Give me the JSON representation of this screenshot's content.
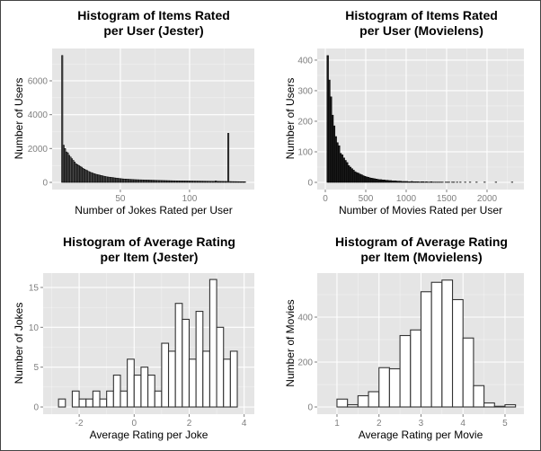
{
  "chart_data": [
    {
      "type": "bar",
      "title": "Histogram of Items Rated\nper User (Jester)",
      "xlabel": "Number of Jokes Rated per User",
      "ylabel": "Number of Users",
      "xlim": [
        0.7,
        146.8
      ],
      "ylim": [
        -425,
        7910
      ],
      "xticks": [
        50,
        100
      ],
      "yticks": [
        0,
        2000,
        4000,
        6000
      ],
      "grid": true,
      "bin_start": 7.5,
      "bin_width": 1,
      "counts": [
        7500,
        2200,
        2000,
        1800,
        1750,
        1600,
        1500,
        1400,
        1300,
        1200,
        1100,
        1050,
        1000,
        950,
        900,
        830,
        780,
        740,
        700,
        650,
        610,
        580,
        550,
        520,
        490,
        470,
        450,
        430,
        410,
        390,
        370,
        350,
        335,
        320,
        310,
        300,
        290,
        280,
        265,
        255,
        245,
        235,
        225,
        215,
        205,
        200,
        195,
        190,
        185,
        180,
        175,
        170,
        165,
        160,
        158,
        155,
        152,
        150,
        148,
        145,
        142,
        140,
        138,
        135,
        132,
        130,
        128,
        125,
        122,
        120,
        118,
        115,
        112,
        110,
        108,
        106,
        104,
        102,
        100,
        98,
        96,
        95,
        94,
        92,
        90,
        89,
        88,
        87,
        86,
        85,
        84,
        83,
        82,
        81,
        80,
        79,
        78,
        77,
        76,
        75,
        74,
        73,
        72,
        71,
        70,
        69,
        68,
        67,
        66,
        65,
        64,
        90,
        62,
        61,
        60,
        59,
        58,
        57,
        56,
        55,
        2900,
        50,
        48,
        46,
        45,
        44,
        43,
        42,
        41,
        40,
        40,
        39,
        38
      ],
      "fill": "#4d4d4d",
      "outline": "#000000"
    },
    {
      "type": "bar",
      "title": "Histogram of Items Rated\nper User (Movielens)",
      "xlabel": "Number of Movies Rated per User",
      "ylabel": "Number of Users",
      "xlim": [
        -100,
        2456
      ],
      "ylim": [
        -23.5,
        438
      ],
      "xticks": [
        0,
        500,
        1000,
        1500,
        2000
      ],
      "yticks": [
        0,
        100,
        200,
        300,
        400
      ],
      "grid": true,
      "bin_start": 20,
      "bin_width": 20,
      "counts": [
        415,
        335,
        280,
        220,
        185,
        150,
        130,
        120,
        95,
        90,
        80,
        72,
        65,
        55,
        50,
        45,
        40,
        35,
        32,
        30,
        27,
        25,
        22,
        20,
        18,
        17,
        15,
        14,
        13,
        12,
        11,
        10,
        9,
        9,
        8,
        8,
        7,
        7,
        6,
        6,
        5,
        5,
        5,
        4,
        4,
        4,
        3,
        3,
        3,
        3,
        2,
        2,
        3,
        2,
        2,
        2,
        2,
        1,
        2,
        2,
        1,
        2,
        1,
        1,
        2,
        1,
        1,
        1,
        1,
        1,
        1,
        1,
        0,
        1,
        1,
        1,
        0,
        1,
        1,
        0,
        1,
        0,
        1,
        0,
        0,
        1,
        0,
        0,
        1,
        0,
        0,
        0,
        1,
        0,
        0,
        0,
        0,
        1,
        0,
        0,
        0,
        0,
        0,
        0,
        1,
        0,
        0,
        0,
        0,
        0,
        0,
        0,
        0,
        0,
        1
      ],
      "fill": "#1a1a1a",
      "outline": "#000000"
    },
    {
      "type": "bar",
      "title": "Histogram of Average Rating\nper Item (Jester)",
      "xlabel": "Average Rating per Joke",
      "ylabel": "Number of Jokes",
      "xlim": [
        -3.31,
        4.37
      ],
      "ylim": [
        -0.9,
        16.8
      ],
      "xticks": [
        -2,
        0,
        2,
        4
      ],
      "yticks": [
        0,
        5,
        10,
        15
      ],
      "grid": true,
      "bin_start": -3,
      "bin_width": 0.25,
      "counts": [
        0,
        1,
        0,
        2,
        1,
        1,
        2,
        1,
        2,
        4,
        2,
        6,
        4,
        5,
        4,
        2,
        8,
        7,
        13,
        11,
        6,
        12,
        7,
        16,
        10,
        6,
        7,
        0
      ],
      "fill": "#ffffff",
      "outline": "#333333"
    },
    {
      "type": "bar",
      "title": "Histogram of Average Rating\nper Item (Movielens)",
      "xlabel": "Average Rating per Movie",
      "ylabel": "Number of Movies",
      "xlim": [
        0.53,
        5.45
      ],
      "ylim": [
        -32,
        596
      ],
      "xticks": [
        1,
        2,
        3,
        4,
        5
      ],
      "yticks": [
        0,
        200,
        400
      ],
      "grid": true,
      "bin_start": 0.75,
      "bin_width": 0.25,
      "counts": [
        0,
        35,
        10,
        50,
        68,
        175,
        170,
        318,
        343,
        513,
        555,
        565,
        478,
        307,
        95,
        18,
        3,
        10
      ],
      "fill": "#ffffff",
      "outline": "#333333"
    }
  ],
  "colors": {
    "panel_background": "#e5e5e5",
    "gridline": "#ffffff",
    "tick_label": "#7f7f7f"
  }
}
